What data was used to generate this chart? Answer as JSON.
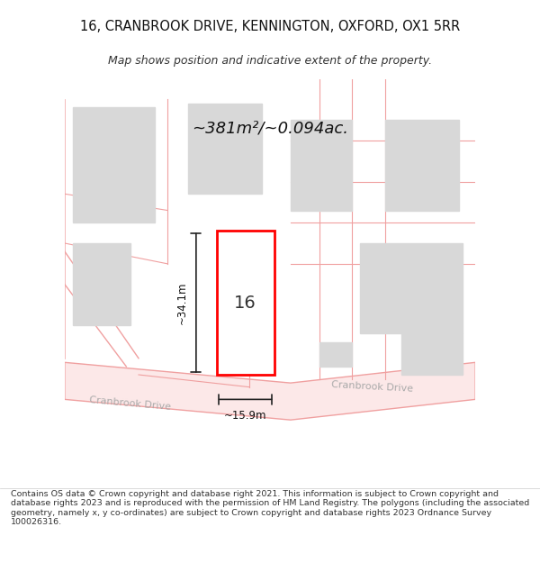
{
  "title_line1": "16, CRANBROOK DRIVE, KENNINGTON, OXFORD, OX1 5RR",
  "title_line2": "Map shows position and indicative extent of the property.",
  "area_text": "~381m²/~0.094ac.",
  "label_16": "16",
  "dim_height": "~34.1m",
  "dim_width": "~15.9m",
  "street_label1": "Cranbrook Drive",
  "street_label2": "Cranbrook Drive",
  "footer_text": "Contains OS data © Crown copyright and database right 2021. This information is subject to Crown copyright and database rights 2023 and is reproduced with the permission of HM Land Registry. The polygons (including the associated geometry, namely x, y co-ordinates) are subject to Crown copyright and database rights 2023 Ordnance Survey 100026316.",
  "bg_color": "#ffffff",
  "map_bg": "#f5f5f5",
  "block_color": "#d8d8d8",
  "street_line_color": "#f0a0a0",
  "property_color": "#ff0000",
  "dim_line_color": "#222222",
  "text_color": "#333333",
  "street_text_color": "#aaaaaa"
}
